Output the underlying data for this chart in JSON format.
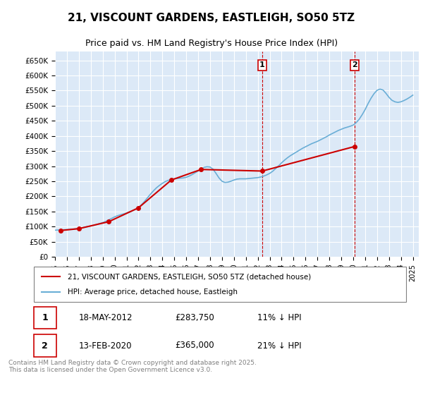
{
  "title": "21, VISCOUNT GARDENS, EASTLEIGH, SO50 5TZ",
  "subtitle": "Price paid vs. HM Land Registry's House Price Index (HPI)",
  "ylabel_prefix": "£",
  "background_color": "#ffffff",
  "plot_bg_color": "#dce9f7",
  "grid_color": "#ffffff",
  "hpi_color": "#6aaed6",
  "price_color": "#cc0000",
  "vline_color": "#cc0000",
  "vline_style": "--",
  "annotation1": {
    "label": "1",
    "date": "18-MAY-2012",
    "price": "£283,750",
    "hpi_diff": "11% ↓ HPI",
    "x_year": 2012.38
  },
  "annotation2": {
    "label": "2",
    "date": "13-FEB-2020",
    "price": "£365,000",
    "hpi_diff": "21% ↓ HPI",
    "x_year": 2020.12
  },
  "legend_line1": "21, VISCOUNT GARDENS, EASTLEIGH, SO50 5TZ (detached house)",
  "legend_line2": "HPI: Average price, detached house, Eastleigh",
  "footer": "Contains HM Land Registry data © Crown copyright and database right 2025.\nThis data is licensed under the Open Government Licence v3.0.",
  "yticks": [
    0,
    50000,
    100000,
    150000,
    200000,
    250000,
    300000,
    350000,
    400000,
    450000,
    500000,
    550000,
    600000,
    650000
  ],
  "ylim": [
    0,
    680000
  ],
  "xlim_start": 1995.0,
  "xlim_end": 2025.5,
  "hpi_data": {
    "years": [
      1995.0,
      1995.25,
      1995.5,
      1995.75,
      1996.0,
      1996.25,
      1996.5,
      1996.75,
      1997.0,
      1997.25,
      1997.5,
      1997.75,
      1998.0,
      1998.25,
      1998.5,
      1998.75,
      1999.0,
      1999.25,
      1999.5,
      1999.75,
      2000.0,
      2000.25,
      2000.5,
      2000.75,
      2001.0,
      2001.25,
      2001.5,
      2001.75,
      2002.0,
      2002.25,
      2002.5,
      2002.75,
      2003.0,
      2003.25,
      2003.5,
      2003.75,
      2004.0,
      2004.25,
      2004.5,
      2004.75,
      2005.0,
      2005.25,
      2005.5,
      2005.75,
      2006.0,
      2006.25,
      2006.5,
      2006.75,
      2007.0,
      2007.25,
      2007.5,
      2007.75,
      2008.0,
      2008.25,
      2008.5,
      2008.75,
      2009.0,
      2009.25,
      2009.5,
      2009.75,
      2010.0,
      2010.25,
      2010.5,
      2010.75,
      2011.0,
      2011.25,
      2011.5,
      2011.75,
      2012.0,
      2012.25,
      2012.5,
      2012.75,
      2013.0,
      2013.25,
      2013.5,
      2013.75,
      2014.0,
      2014.25,
      2014.5,
      2014.75,
      2015.0,
      2015.25,
      2015.5,
      2015.75,
      2016.0,
      2016.25,
      2016.5,
      2016.75,
      2017.0,
      2017.25,
      2017.5,
      2017.75,
      2018.0,
      2018.25,
      2018.5,
      2018.75,
      2019.0,
      2019.25,
      2019.5,
      2019.75,
      2020.0,
      2020.25,
      2020.5,
      2020.75,
      2021.0,
      2021.25,
      2021.5,
      2021.75,
      2022.0,
      2022.25,
      2022.5,
      2022.75,
      2023.0,
      2023.25,
      2023.5,
      2023.75,
      2024.0,
      2024.25,
      2024.5,
      2024.75,
      2025.0
    ],
    "values": [
      88000,
      88500,
      89000,
      89500,
      90000,
      90500,
      91500,
      92500,
      94000,
      96000,
      98000,
      100000,
      102000,
      104000,
      107000,
      110000,
      113000,
      117000,
      122000,
      127000,
      132000,
      136000,
      139000,
      142000,
      145000,
      148000,
      152000,
      157000,
      163000,
      172000,
      183000,
      195000,
      207000,
      218000,
      228000,
      236000,
      243000,
      249000,
      253000,
      256000,
      258000,
      259000,
      260000,
      261000,
      263000,
      267000,
      272000,
      278000,
      284000,
      290000,
      296000,
      298000,
      297000,
      290000,
      276000,
      261000,
      250000,
      246000,
      247000,
      250000,
      254000,
      257000,
      258000,
      258000,
      258000,
      259000,
      260000,
      261000,
      262000,
      264000,
      267000,
      271000,
      276000,
      283000,
      292000,
      301000,
      311000,
      320000,
      328000,
      335000,
      341000,
      347000,
      353000,
      359000,
      364000,
      369000,
      374000,
      378000,
      382000,
      387000,
      392000,
      397000,
      403000,
      408000,
      413000,
      418000,
      422000,
      426000,
      429000,
      432000,
      436000,
      444000,
      455000,
      470000,
      487000,
      507000,
      525000,
      540000,
      551000,
      555000,
      552000,
      541000,
      528000,
      518000,
      513000,
      511000,
      513000,
      517000,
      522000,
      528000,
      535000
    ]
  },
  "price_data": {
    "years": [
      1995.5,
      1997.0,
      1999.5,
      2002.0,
      2004.75,
      2007.25,
      2012.38,
      2020.12
    ],
    "values": [
      87000,
      93000,
      116000,
      162000,
      254000,
      289000,
      283750,
      365000
    ]
  }
}
